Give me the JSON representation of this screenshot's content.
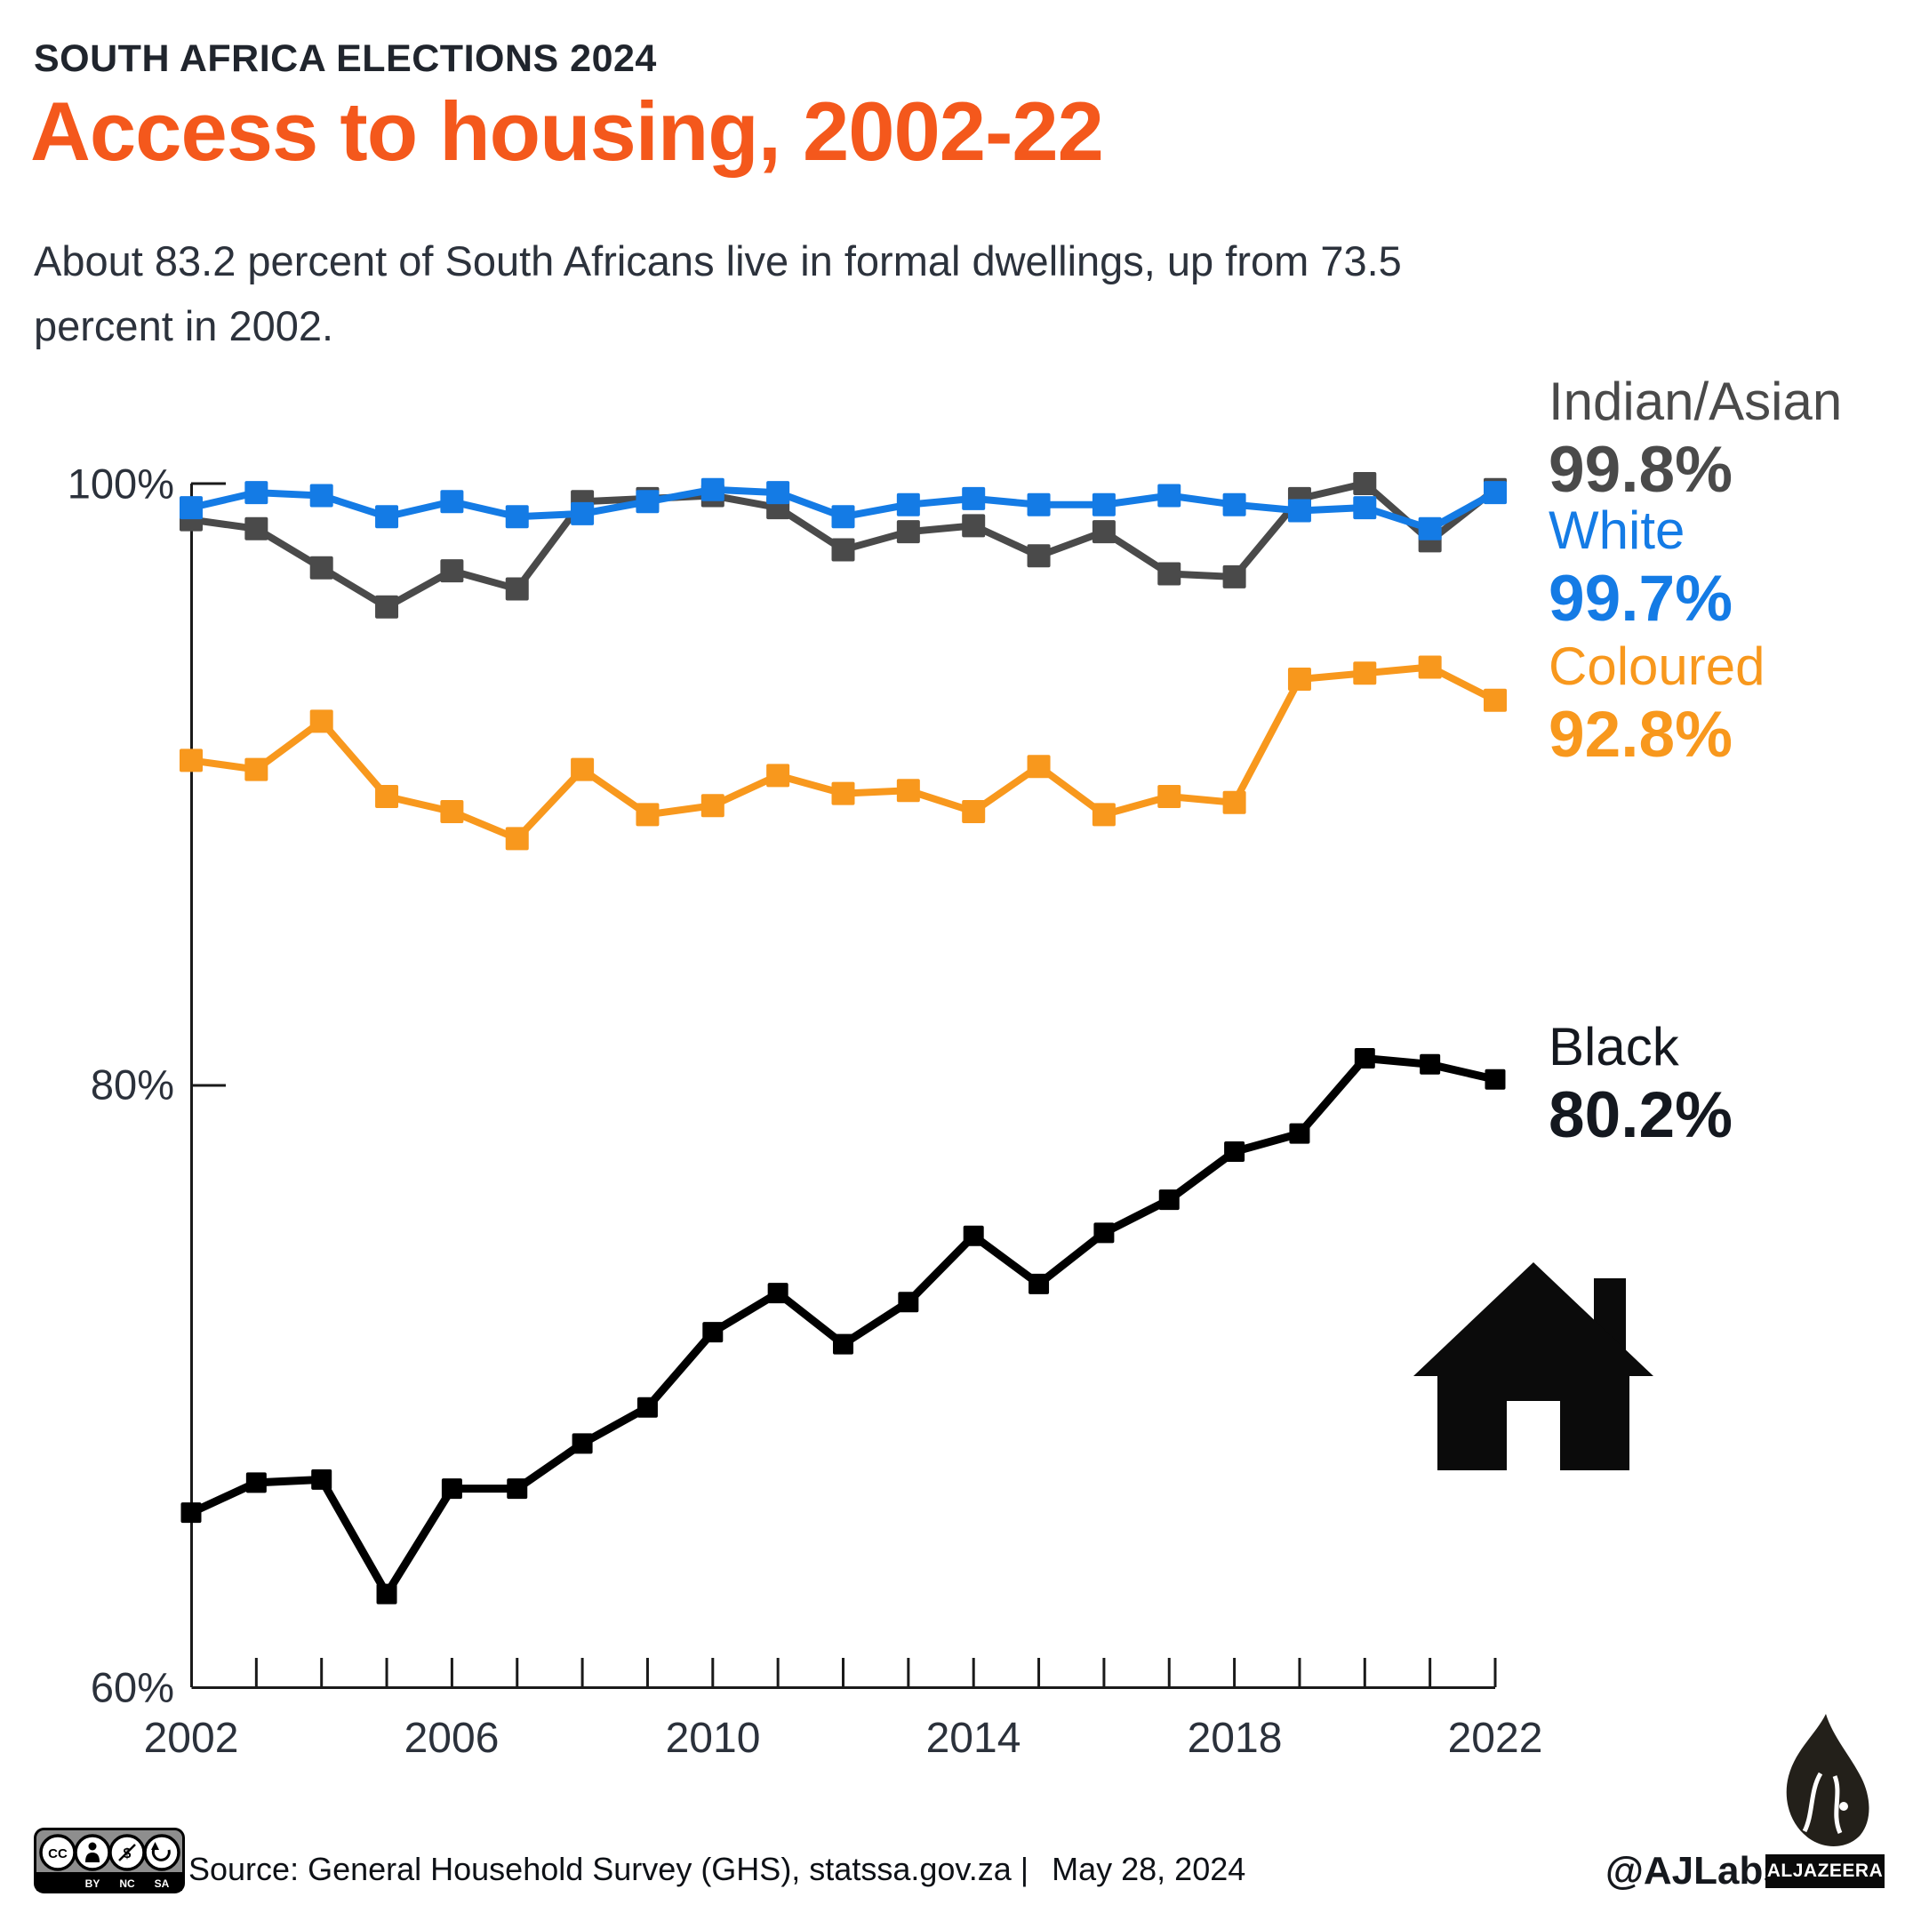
{
  "theme": {
    "accent": "#f4581c",
    "axis_color": "#1a1a1a",
    "text_dark": "#20252d"
  },
  "header": {
    "kicker": "SOUTH AFRICA ELECTIONS 2024",
    "title": "Access to housing, 2002-22",
    "subtitle": "About 83.2 percent of South Africans live in formal dwellings, up from 73.5 percent in 2002."
  },
  "legend": [
    {
      "label": "Indian/Asian",
      "value": "99.8%",
      "color": "#4a4a4a"
    },
    {
      "label": "White",
      "value": "99.7%",
      "color": "#147be5"
    },
    {
      "label": "Coloured",
      "value": "92.8%",
      "color": "#f8981d"
    },
    {
      "label": "Black",
      "value": "80.2%",
      "color": "#14181f"
    }
  ],
  "chart_data": {
    "type": "line",
    "x": [
      2002,
      2003,
      2004,
      2005,
      2006,
      2007,
      2008,
      2009,
      2010,
      2011,
      2012,
      2013,
      2014,
      2015,
      2016,
      2017,
      2018,
      2019,
      2020,
      2021,
      2022
    ],
    "x_tick_labels": [
      "2002",
      "2006",
      "2010",
      "2014",
      "2018",
      "2022"
    ],
    "y_tick_labels": [
      "100%",
      "80%",
      "60%"
    ],
    "y_ticks": [
      100,
      80,
      60
    ],
    "ylim": [
      60,
      100
    ],
    "grid": false,
    "legend_position": "right",
    "marker": "square",
    "series": [
      {
        "name": "Indian/Asian",
        "color": "#4a4a4a",
        "final_label": "99.8%",
        "values": [
          98.8,
          98.5,
          97.2,
          95.9,
          97.1,
          96.5,
          99.4,
          99.5,
          99.6,
          99.2,
          97.8,
          98.4,
          98.6,
          97.6,
          98.4,
          97.0,
          96.9,
          99.5,
          100.0,
          98.1,
          99.8
        ]
      },
      {
        "name": "White",
        "color": "#147be5",
        "final_label": "99.7%",
        "values": [
          99.2,
          99.7,
          99.6,
          98.9,
          99.4,
          98.9,
          99.0,
          99.4,
          99.8,
          99.7,
          98.9,
          99.3,
          99.5,
          99.3,
          99.3,
          99.6,
          99.3,
          99.1,
          99.2,
          98.5,
          99.7
        ]
      },
      {
        "name": "Coloured",
        "color": "#f8981d",
        "final_label": "92.8%",
        "values": [
          90.8,
          90.5,
          92.1,
          89.6,
          89.1,
          88.2,
          90.5,
          89.0,
          89.3,
          90.3,
          89.7,
          89.8,
          89.1,
          90.6,
          89.0,
          89.6,
          89.4,
          93.5,
          93.7,
          93.9,
          92.8
        ]
      },
      {
        "name": "Black",
        "color": "#000000",
        "final_label": "80.2%",
        "values": [
          65.8,
          66.8,
          66.9,
          63.1,
          66.6,
          66.6,
          68.1,
          69.3,
          71.8,
          73.1,
          71.4,
          72.8,
          75.0,
          73.4,
          75.1,
          76.2,
          77.8,
          78.4,
          80.9,
          80.7,
          80.2
        ]
      }
    ]
  },
  "footer": {
    "source": "Source: General Household Survey (GHS), statssa.gov.za |",
    "date": "May 28, 2024",
    "credit": "@AJLabs",
    "brand": "ALJAZEERA",
    "cc": {
      "cc": "CC",
      "by": "BY",
      "nc": "NC",
      "sa": "SA",
      "dollar": "$"
    }
  }
}
